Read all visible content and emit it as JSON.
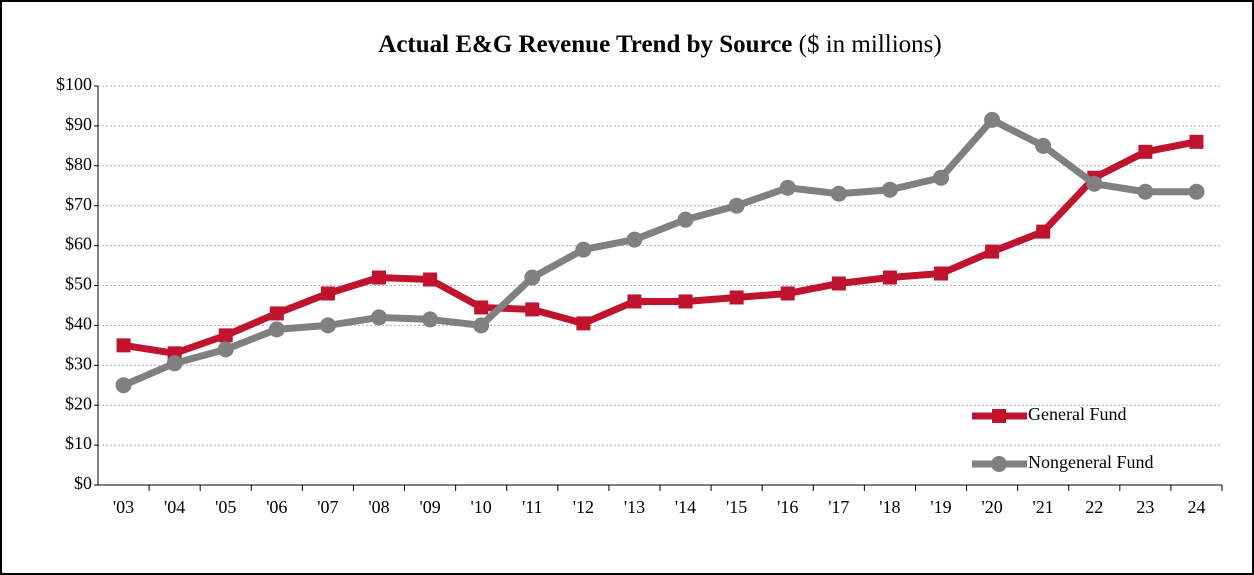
{
  "chart_data": {
    "type": "line",
    "title": "Actual E&G Revenue Trend by Source",
    "subtitle": "($ in millions)",
    "categories": [
      "'03",
      "'04",
      "'05",
      "'06",
      "'07",
      "'08",
      "'09",
      "'10",
      "'11",
      "'12",
      "'13",
      "'14",
      "'15",
      "'16",
      "'17",
      "'18",
      "'19",
      "'20",
      "'21",
      "22",
      "23",
      "24"
    ],
    "series": [
      {
        "name": "General Fund",
        "color": "#c0142e",
        "marker": "square",
        "values": [
          35,
          33,
          37.5,
          43,
          48,
          52,
          51.5,
          44.5,
          44,
          40.5,
          46,
          46,
          47,
          48,
          50.5,
          52,
          53,
          58.5,
          63.5,
          77,
          83.5,
          86
        ]
      },
      {
        "name": "Nongeneral Fund",
        "color": "#808080",
        "marker": "circle",
        "values": [
          25,
          30.5,
          34,
          39,
          40,
          42,
          41.5,
          40,
          52,
          59,
          61.5,
          66.5,
          70,
          74.5,
          73,
          74,
          77,
          91.5,
          85,
          75.5,
          73.5,
          73.5
        ]
      }
    ],
    "ylim": [
      0,
      100
    ],
    "yticks": [
      {
        "value": 0,
        "label": "$0"
      },
      {
        "value": 10,
        "label": "$10"
      },
      {
        "value": 20,
        "label": "$20"
      },
      {
        "value": 30,
        "label": "$30"
      },
      {
        "value": 40,
        "label": "$40"
      },
      {
        "value": 50,
        "label": "$50"
      },
      {
        "value": 60,
        "label": "$60"
      },
      {
        "value": 70,
        "label": "$70"
      },
      {
        "value": 80,
        "label": "$80"
      },
      {
        "value": 90,
        "label": "$90"
      },
      {
        "value": 100,
        "label": "$100"
      }
    ],
    "grid": true,
    "legend": "lower right"
  }
}
